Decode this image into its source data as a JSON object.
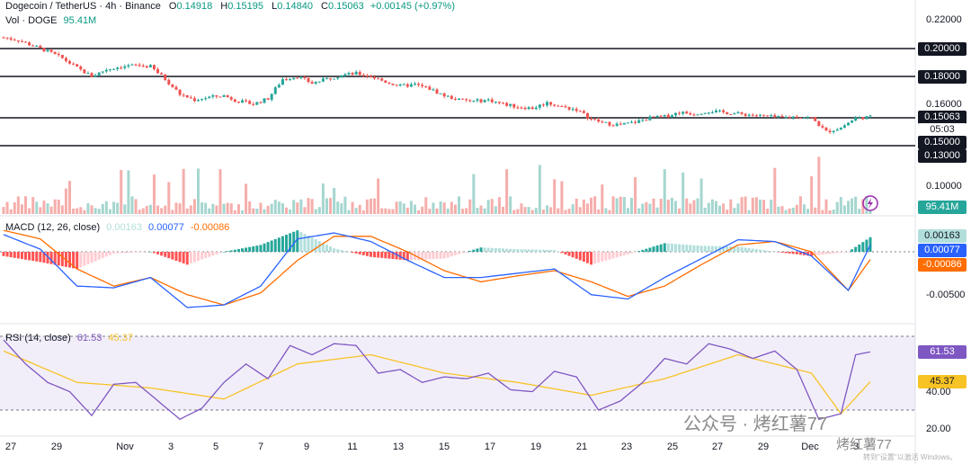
{
  "header": {
    "symbol": "Dogecoin / TetherUS · 4h · Binance",
    "open_label": "O",
    "open": "0.14918",
    "high_label": "H",
    "high": "0.15195",
    "low_label": "L",
    "low": "0.14840",
    "close_label": "C",
    "close": "0.15063",
    "change": "+0.00145 (+0.97%)"
  },
  "volume_legend": {
    "label": "Vol · DOGE",
    "value": "95.41M"
  },
  "macd_legend": {
    "label": "MACD (12, 26, close)",
    "hist": "0.00163",
    "macd": "0.00077",
    "signal": "-0.00086"
  },
  "rsi_legend": {
    "label": "RSI (14, close)",
    "rsi": "61.53",
    "ma": "45.37"
  },
  "price_axis": [
    "0.22000",
    "0.20000",
    "0.18000",
    "0.16000",
    "0.15063",
    "05:03",
    "0.15000",
    "0.13000",
    "0.10000",
    "95.41M"
  ],
  "macd_axis": [
    "0.00163",
    "0.00077",
    "-0.00086",
    "-0.00500"
  ],
  "rsi_axis": [
    "61.53",
    "45.37",
    "40.00",
    "20.00"
  ],
  "time_axis": [
    "27",
    "29",
    "Nov",
    "3",
    "5",
    "7",
    "9",
    "11",
    "13",
    "15",
    "17",
    "19",
    "21",
    "23",
    "25",
    "27",
    "29",
    "Dec",
    "3"
  ],
  "watermark": {
    "text": "公众号 · 烤红薯77",
    "sub": "烤红薯77",
    "windows": "转到\"设置\"以激活 Windows。"
  },
  "colors": {
    "up": "#26a69a",
    "down": "#ef5350",
    "macd": "#2962ff",
    "signal": "#ff6d00",
    "rsi": "#7e57c2",
    "rsi_ma": "#f7c325"
  },
  "chart_data": [
    {
      "type": "candlestick",
      "series": "DOGE/USDT 4h",
      "horizontal_levels": [
        0.2,
        0.18,
        0.15063,
        0.13
      ],
      "price_range": [
        0.09,
        0.225
      ],
      "path_points": [
        [
          0,
          0.208
        ],
        [
          4,
          0.206
        ],
        [
          8,
          0.202
        ],
        [
          12,
          0.198
        ],
        [
          16,
          0.193
        ],
        [
          20,
          0.186
        ],
        [
          24,
          0.18
        ],
        [
          28,
          0.185
        ],
        [
          32,
          0.187
        ],
        [
          36,
          0.188
        ],
        [
          40,
          0.187
        ],
        [
          44,
          0.178
        ],
        [
          48,
          0.167
        ],
        [
          52,
          0.163
        ],
        [
          56,
          0.165
        ],
        [
          60,
          0.166
        ],
        [
          64,
          0.162
        ],
        [
          68,
          0.16
        ],
        [
          72,
          0.164
        ],
        [
          76,
          0.178
        ],
        [
          80,
          0.18
        ],
        [
          84,
          0.175
        ],
        [
          88,
          0.178
        ],
        [
          92,
          0.181
        ],
        [
          96,
          0.182
        ],
        [
          100,
          0.18
        ],
        [
          104,
          0.176
        ],
        [
          108,
          0.173
        ],
        [
          112,
          0.174
        ],
        [
          116,
          0.171
        ],
        [
          120,
          0.166
        ],
        [
          124,
          0.163
        ],
        [
          128,
          0.162
        ],
        [
          132,
          0.163
        ],
        [
          136,
          0.16
        ],
        [
          140,
          0.158
        ],
        [
          144,
          0.157
        ],
        [
          148,
          0.161
        ],
        [
          152,
          0.158
        ],
        [
          156,
          0.156
        ],
        [
          160,
          0.149
        ],
        [
          164,
          0.146
        ],
        [
          168,
          0.145
        ],
        [
          172,
          0.147
        ],
        [
          176,
          0.15
        ],
        [
          180,
          0.151
        ],
        [
          184,
          0.154
        ],
        [
          188,
          0.153
        ],
        [
          192,
          0.155
        ],
        [
          196,
          0.154
        ],
        [
          200,
          0.153
        ],
        [
          204,
          0.152
        ],
        [
          208,
          0.151
        ],
        [
          212,
          0.15
        ],
        [
          216,
          0.151
        ],
        [
          220,
          0.15
        ],
        [
          224,
          0.14
        ],
        [
          228,
          0.143
        ],
        [
          232,
          0.15
        ],
        [
          236,
          0.1506
        ]
      ],
      "volume_range": [
        0,
        100
      ]
    },
    {
      "type": "line",
      "name": "MACD",
      "y_range": [
        -0.0075,
        0.0035
      ],
      "macd": [
        [
          0,
          0.002
        ],
        [
          10,
          0.0003
        ],
        [
          20,
          -0.004
        ],
        [
          30,
          -0.0042
        ],
        [
          40,
          -0.003
        ],
        [
          50,
          -0.0065
        ],
        [
          60,
          -0.0062
        ],
        [
          70,
          -0.004
        ],
        [
          80,
          0.0015
        ],
        [
          90,
          0.0022
        ],
        [
          100,
          0.0012
        ],
        [
          110,
          -0.001
        ],
        [
          120,
          -0.003
        ],
        [
          130,
          -0.003
        ],
        [
          140,
          -0.0025
        ],
        [
          150,
          -0.002
        ],
        [
          160,
          -0.005
        ],
        [
          170,
          -0.0055
        ],
        [
          180,
          -0.003
        ],
        [
          190,
          -0.0008
        ],
        [
          200,
          0.0014
        ],
        [
          210,
          0.0012
        ],
        [
          220,
          -0.0005
        ],
        [
          230,
          -0.0045
        ],
        [
          236,
          0.0008
        ]
      ],
      "signal": [
        [
          0,
          0.0025
        ],
        [
          10,
          0.0015
        ],
        [
          20,
          -0.002
        ],
        [
          30,
          -0.004
        ],
        [
          40,
          -0.003
        ],
        [
          50,
          -0.005
        ],
        [
          60,
          -0.0062
        ],
        [
          70,
          -0.0048
        ],
        [
          80,
          -0.001
        ],
        [
          90,
          0.0018
        ],
        [
          100,
          0.0018
        ],
        [
          110,
          0.0
        ],
        [
          120,
          -0.0022
        ],
        [
          130,
          -0.0035
        ],
        [
          140,
          -0.0028
        ],
        [
          150,
          -0.0022
        ],
        [
          160,
          -0.0035
        ],
        [
          170,
          -0.0052
        ],
        [
          180,
          -0.004
        ],
        [
          190,
          -0.0015
        ],
        [
          200,
          0.0008
        ],
        [
          210,
          0.0012
        ],
        [
          220,
          0.0
        ],
        [
          230,
          -0.0045
        ],
        [
          236,
          -0.0009
        ]
      ]
    },
    {
      "type": "line",
      "name": "RSI",
      "y_range": [
        20,
        80
      ],
      "bands": [
        30,
        70
      ],
      "rsi": [
        [
          0,
          68
        ],
        [
          6,
          55
        ],
        [
          12,
          45
        ],
        [
          18,
          40
        ],
        [
          24,
          27
        ],
        [
          30,
          44
        ],
        [
          36,
          45
        ],
        [
          42,
          35
        ],
        [
          48,
          25
        ],
        [
          54,
          31
        ],
        [
          60,
          45
        ],
        [
          66,
          55
        ],
        [
          72,
          47
        ],
        [
          78,
          65
        ],
        [
          84,
          60
        ],
        [
          90,
          66
        ],
        [
          96,
          65
        ],
        [
          102,
          50
        ],
        [
          108,
          52
        ],
        [
          114,
          45
        ],
        [
          120,
          48
        ],
        [
          126,
          47
        ],
        [
          132,
          50
        ],
        [
          138,
          41
        ],
        [
          144,
          40
        ],
        [
          150,
          51
        ],
        [
          156,
          48
        ],
        [
          162,
          30
        ],
        [
          168,
          35
        ],
        [
          174,
          45
        ],
        [
          180,
          58
        ],
        [
          186,
          55
        ],
        [
          192,
          66
        ],
        [
          198,
          63
        ],
        [
          204,
          58
        ],
        [
          210,
          62
        ],
        [
          216,
          52
        ],
        [
          222,
          25
        ],
        [
          228,
          28
        ],
        [
          232,
          60
        ],
        [
          236,
          61.53
        ]
      ],
      "rsi_ma": [
        [
          0,
          62
        ],
        [
          20,
          45
        ],
        [
          40,
          42
        ],
        [
          60,
          36
        ],
        [
          80,
          55
        ],
        [
          100,
          60
        ],
        [
          120,
          50
        ],
        [
          140,
          45
        ],
        [
          160,
          38
        ],
        [
          180,
          47
        ],
        [
          200,
          60
        ],
        [
          220,
          50
        ],
        [
          228,
          28
        ],
        [
          236,
          45.37
        ]
      ]
    }
  ]
}
